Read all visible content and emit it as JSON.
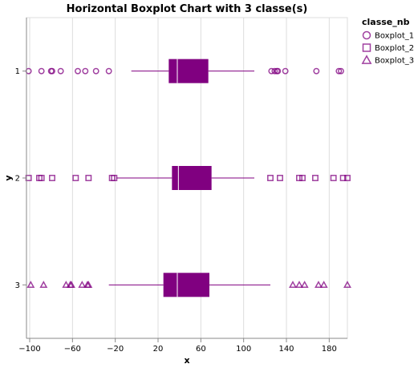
{
  "chart_data": {
    "type": "boxplot",
    "orientation": "horizontal",
    "title": "Horizontal Boxplot Chart with 3 classe(s)",
    "xlabel": "x",
    "ylabel": "y",
    "xlim": [
      -103,
      197
    ],
    "x_ticks": [
      -100,
      -60,
      -20,
      20,
      60,
      100,
      140,
      180
    ],
    "grid": true,
    "legend": {
      "title": "classe_nb",
      "position": "top-right"
    },
    "color": "#800080",
    "series": [
      {
        "category": "1",
        "name": "Boxplot_1",
        "shape": "circle",
        "whisker_low": -5,
        "q1": 30,
        "median": 38,
        "q3": 67,
        "whisker_high": 110,
        "outliers": [
          -101,
          -89,
          -80,
          -79,
          -71,
          -55,
          -48,
          -38,
          -26,
          126,
          129,
          131,
          132,
          139,
          168,
          189,
          191
        ]
      },
      {
        "category": "2",
        "name": "Boxplot_2",
        "shape": "square",
        "whisker_low": -19,
        "q1": 33,
        "median": 39,
        "q3": 70,
        "whisker_high": 110,
        "outliers": [
          -101,
          -91,
          -89,
          -79,
          -57,
          -45,
          -23,
          -21,
          125,
          134,
          152,
          155,
          167,
          184,
          193,
          197
        ]
      },
      {
        "category": "3",
        "name": "Boxplot_3",
        "shape": "triangle",
        "whisker_low": -26,
        "q1": 25,
        "median": 38,
        "q3": 68,
        "whisker_high": 125,
        "outliers": [
          -99,
          -87,
          -66,
          -62,
          -61,
          -51,
          -46,
          -45,
          146,
          152,
          157,
          170,
          175,
          197
        ]
      }
    ]
  }
}
